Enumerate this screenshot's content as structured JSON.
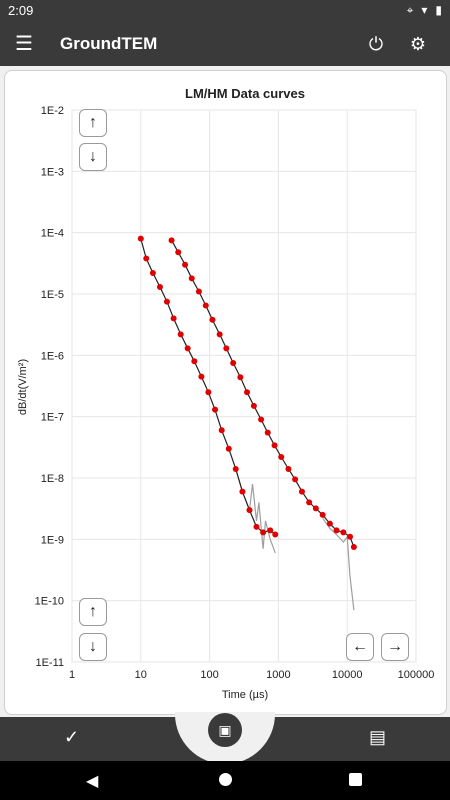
{
  "status_bar": {
    "time": "2:09",
    "icons": [
      "location-icon",
      "wifi-icon",
      "battery-icon"
    ]
  },
  "app_bar": {
    "title": "GroundTEM",
    "menu_icon": "menu-icon",
    "power_icon": "power-icon",
    "settings_icon": "gear-icon"
  },
  "chart_data": {
    "type": "line",
    "title": "LM/HM Data curves",
    "xlabel": "Time (µs)",
    "ylabel": "dB/dt(V/m²)",
    "x_scale": "log",
    "y_scale": "log",
    "xlim": [
      1,
      100000
    ],
    "ylim": [
      1e-11,
      0.01
    ],
    "x_ticks": [
      "1",
      "10",
      "100",
      "1000",
      "10000",
      "100000"
    ],
    "y_ticks": [
      "1E-2",
      "1E-3",
      "1E-4",
      "1E-5",
      "1E-6",
      "1E-7",
      "1E-8",
      "1E-9",
      "1E-10",
      "1E-11"
    ],
    "grid": true,
    "series": [
      {
        "color": "#e00000",
        "style": "line+markers",
        "x": [
          10,
          12,
          15,
          19,
          24,
          30,
          38,
          48,
          60,
          76,
          96,
          120,
          150,
          190,
          240,
          300,
          380,
          480,
          600,
          760,
          900
        ],
        "y": [
          8e-05,
          3.8e-05,
          2.2e-05,
          1.3e-05,
          7.5e-06,
          4e-06,
          2.2e-06,
          1.3e-06,
          8e-07,
          4.5e-07,
          2.5e-07,
          1.3e-07,
          6e-08,
          3e-08,
          1.4e-08,
          6e-09,
          3e-09,
          1.6e-09,
          1.3e-09,
          1.4e-09,
          1.2e-09
        ]
      },
      {
        "color": "#e00000",
        "style": "line+markers",
        "x": [
          28,
          35,
          44,
          55,
          70,
          88,
          110,
          140,
          175,
          220,
          280,
          350,
          440,
          560,
          700,
          880,
          1100,
          1400,
          1750,
          2200,
          2800,
          3500,
          4400,
          5600,
          7000,
          8800,
          11000,
          12500
        ],
        "y": [
          7.5e-05,
          4.8e-05,
          3e-05,
          1.8e-05,
          1.1e-05,
          6.5e-06,
          3.8e-06,
          2.2e-06,
          1.3e-06,
          7.5e-07,
          4.4e-07,
          2.5e-07,
          1.5e-07,
          9e-08,
          5.5e-08,
          3.4e-08,
          2.2e-08,
          1.4e-08,
          9.5e-09,
          6e-09,
          4e-09,
          3.2e-09,
          2.5e-09,
          1.8e-09,
          1.4e-09,
          1.3e-09,
          1.1e-09,
          7.5e-10
        ]
      },
      {
        "color": "#9e9e9e",
        "style": "line",
        "x": [
          240,
          300,
          380,
          420,
          480,
          520,
          600,
          650,
          760,
          900
        ],
        "y": [
          1.4e-08,
          6e-09,
          3e-09,
          8e-09,
          2e-09,
          4e-09,
          7e-10,
          2e-09,
          1e-09,
          6e-10
        ]
      },
      {
        "color": "#9e9e9e",
        "style": "line",
        "x": [
          4400,
          5600,
          7000,
          8800,
          10000,
          11000,
          12500
        ],
        "y": [
          2.2e-09,
          1.5e-09,
          1.2e-09,
          9e-10,
          1.1e-09,
          2.5e-10,
          7e-11
        ]
      }
    ]
  },
  "controls": {
    "y_up_top": "↑",
    "y_down_top": "↓",
    "y_up_bottom": "↑",
    "y_down_bottom": "↓",
    "x_left": "←",
    "x_right": "→"
  },
  "bottom_bar": {
    "left_icon": "check-add-icon",
    "center_icon": "chart-icon",
    "right_icon": "clipboard-add-icon"
  }
}
